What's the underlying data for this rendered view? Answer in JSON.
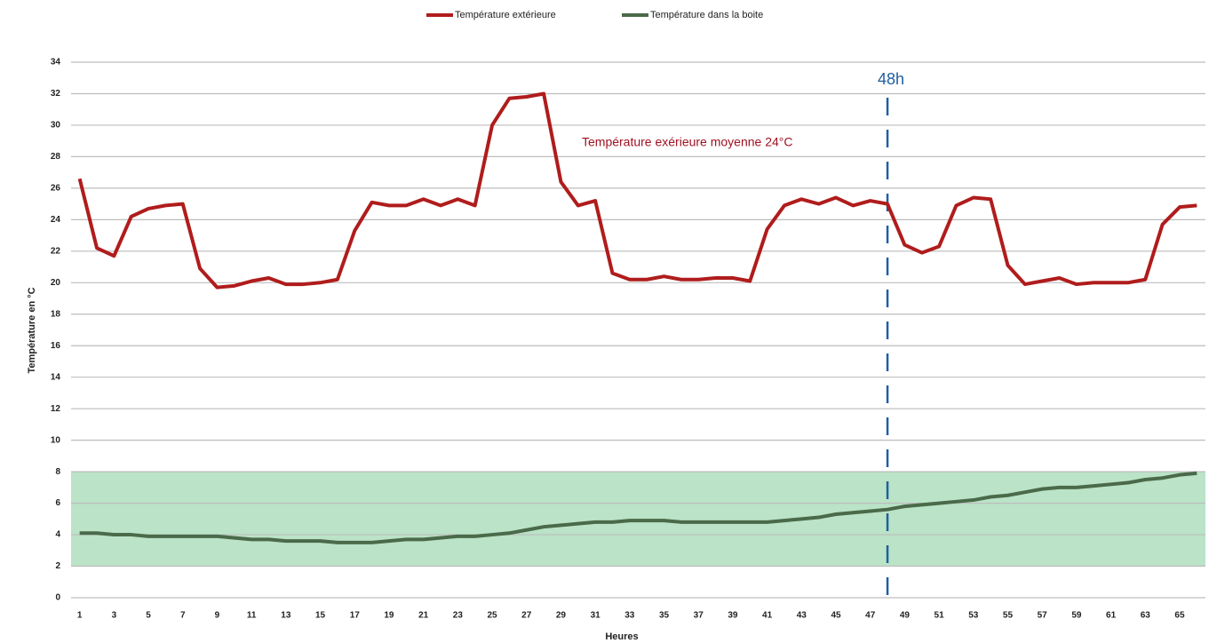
{
  "chart_data": {
    "type": "line",
    "x_label": "Heures",
    "y_label": "Température en °C",
    "x": [
      1,
      2,
      3,
      4,
      5,
      6,
      7,
      8,
      9,
      10,
      11,
      12,
      13,
      14,
      15,
      16,
      17,
      18,
      19,
      20,
      21,
      22,
      23,
      24,
      25,
      26,
      27,
      28,
      29,
      30,
      31,
      32,
      33,
      34,
      35,
      36,
      37,
      38,
      39,
      40,
      41,
      42,
      43,
      44,
      45,
      46,
      47,
      48,
      49,
      50,
      51,
      52,
      53,
      54,
      55,
      56,
      57,
      58,
      59,
      60,
      61,
      62,
      63,
      64,
      65,
      66
    ],
    "series": [
      {
        "name": "Température extérieure",
        "color": "#b01c1c",
        "values": [
          26.6,
          22.2,
          21.7,
          24.2,
          24.7,
          24.9,
          25.0,
          20.9,
          19.7,
          19.8,
          20.1,
          20.3,
          19.9,
          19.9,
          20.0,
          20.2,
          23.3,
          25.1,
          24.9,
          24.9,
          25.3,
          24.9,
          25.3,
          24.9,
          30.0,
          31.7,
          31.8,
          32.0,
          26.4,
          24.9,
          25.2,
          20.6,
          20.2,
          20.2,
          20.4,
          20.2,
          20.2,
          20.3,
          20.3,
          20.1,
          23.4,
          24.9,
          25.3,
          25.0,
          25.4,
          24.9,
          25.2,
          25.0,
          22.4,
          21.9,
          22.3,
          24.9,
          25.4,
          25.3,
          21.1,
          19.9,
          20.1,
          20.3,
          19.9,
          20.0,
          20.0,
          20.0,
          20.2,
          23.7,
          24.8,
          24.9
        ]
      },
      {
        "name": "Température dans la boite",
        "color": "#4a6a4a",
        "values": [
          4.1,
          4.1,
          4.0,
          4.0,
          3.9,
          3.9,
          3.9,
          3.9,
          3.9,
          3.8,
          3.7,
          3.7,
          3.6,
          3.6,
          3.6,
          3.5,
          3.5,
          3.5,
          3.6,
          3.7,
          3.7,
          3.8,
          3.9,
          3.9,
          4.0,
          4.1,
          4.3,
          4.5,
          4.6,
          4.7,
          4.8,
          4.8,
          4.9,
          4.9,
          4.9,
          4.8,
          4.8,
          4.8,
          4.8,
          4.8,
          4.8,
          4.9,
          5.0,
          5.1,
          5.3,
          5.4,
          5.5,
          5.6,
          5.8,
          5.9,
          6.0,
          6.1,
          6.2,
          6.4,
          6.5,
          6.7,
          6.9,
          7.0,
          7.0,
          7.1,
          7.2,
          7.3,
          7.5,
          7.6,
          7.8,
          7.9
        ]
      }
    ],
    "xlim": [
      0.5,
      66.5
    ],
    "xticks": [
      1,
      3,
      5,
      7,
      9,
      11,
      13,
      15,
      17,
      19,
      21,
      23,
      25,
      27,
      29,
      31,
      33,
      35,
      37,
      39,
      41,
      43,
      45,
      47,
      49,
      51,
      53,
      55,
      57,
      59,
      61,
      63,
      65
    ],
    "ylim": [
      0,
      34
    ],
    "yticks": [
      0,
      2,
      4,
      6,
      8,
      10,
      12,
      14,
      16,
      18,
      20,
      22,
      24,
      26,
      28,
      30,
      32,
      34
    ],
    "grid": true,
    "legend": "top",
    "band": {
      "from": 2,
      "to": 8,
      "color": "#a9dcb9"
    },
    "marker": {
      "x": 48,
      "label": "48h",
      "color": "#1f5fa0"
    },
    "annotation": {
      "text": "Température exérieure moyenne 24°C",
      "color": "#a01020"
    }
  }
}
